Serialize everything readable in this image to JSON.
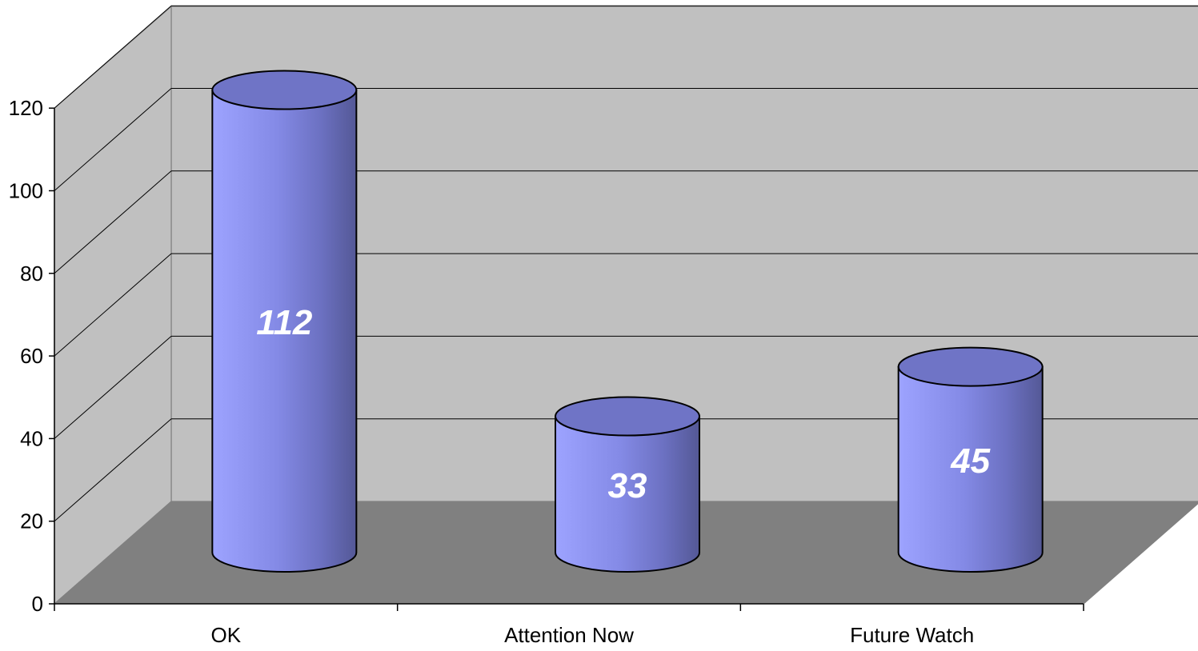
{
  "chart_data": {
    "type": "bar",
    "style": "3d-cylinder",
    "categories": [
      "OK",
      "Attention Now",
      "Future Watch"
    ],
    "values": [
      112,
      33,
      45
    ],
    "data_labels": [
      "112",
      "33",
      "45"
    ],
    "title": "",
    "xlabel": "",
    "ylabel": "",
    "ylim": [
      0,
      120
    ],
    "yticks": [
      0,
      20,
      40,
      60,
      80,
      100,
      120
    ],
    "ytick_labels": [
      "0",
      "20",
      "40",
      "60",
      "80",
      "100",
      "120"
    ],
    "grid": true,
    "legend": "none",
    "colors": {
      "bar_light": "#9da3ff",
      "bar_mid": "#7b80d8",
      "bar_dark": "#575b9e",
      "bar_top": "#6f74c6",
      "back_wall": "#c0c0c0",
      "side_wall": "#c0c0c0",
      "floor": "#808080",
      "gridline": "#000000",
      "data_label": "#ffffff"
    }
  }
}
